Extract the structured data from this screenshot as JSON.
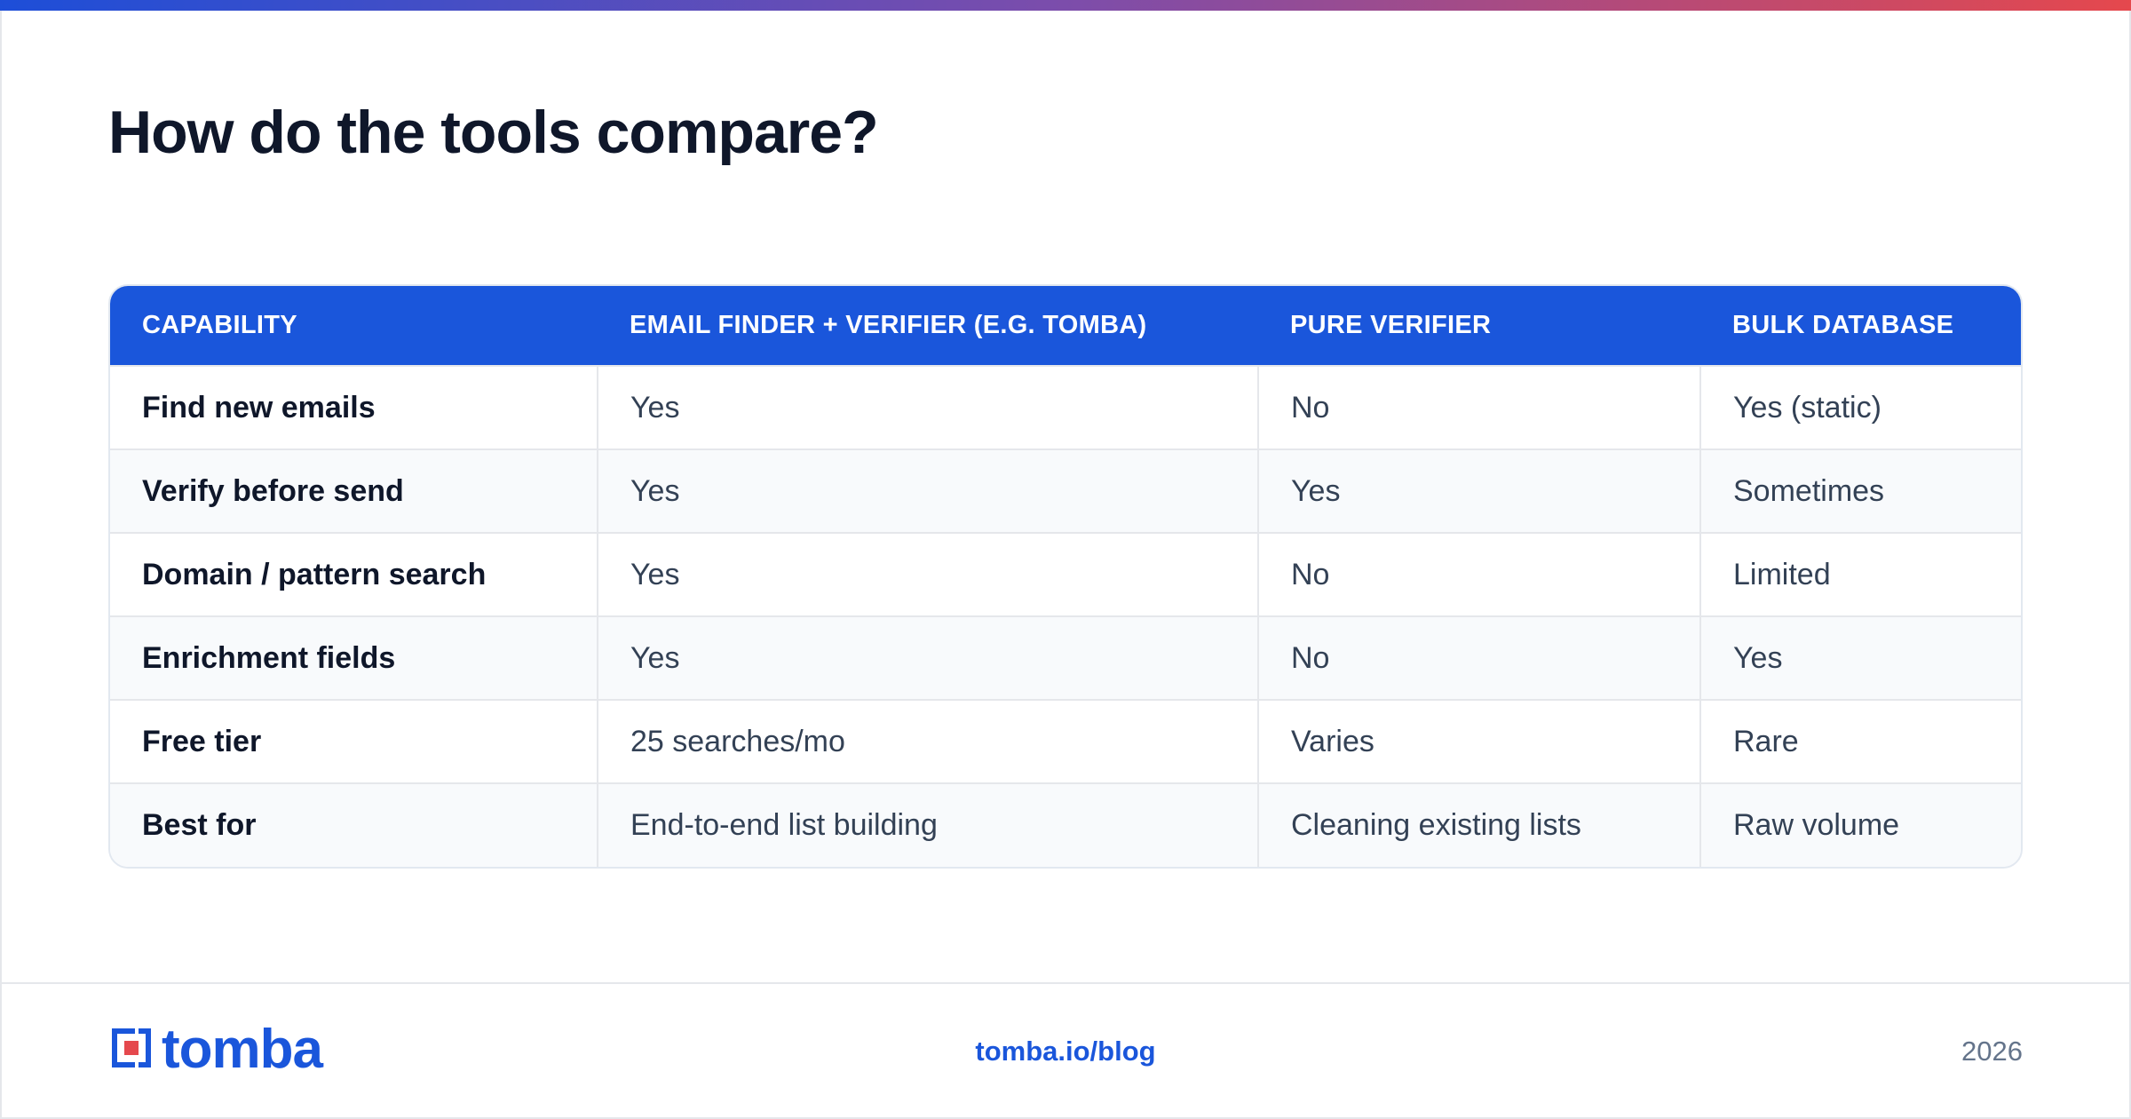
{
  "page": {
    "title": "How do the tools compare?"
  },
  "colors": {
    "brand": "#1a56db",
    "accent_red": "#e5484d"
  },
  "table": {
    "headers": [
      "CAPABILITY",
      "EMAIL FINDER + VERIFIER (E.G. TOMBA)",
      "PURE VERIFIER",
      "BULK DATABASE"
    ],
    "rows": [
      [
        "Find new emails",
        "Yes",
        "No",
        "Yes (static)"
      ],
      [
        "Verify before send",
        "Yes",
        "Yes",
        "Sometimes"
      ],
      [
        "Domain / pattern search",
        "Yes",
        "No",
        "Limited"
      ],
      [
        "Enrichment fields",
        "Yes",
        "No",
        "Yes"
      ],
      [
        "Free tier",
        "25 searches/mo",
        "Varies",
        "Rare"
      ],
      [
        "Best for",
        "End-to-end list building",
        "Cleaning existing lists",
        "Raw volume"
      ]
    ]
  },
  "footer": {
    "logo_text": "tomba",
    "link": "tomba.io/blog",
    "year": "2026"
  }
}
